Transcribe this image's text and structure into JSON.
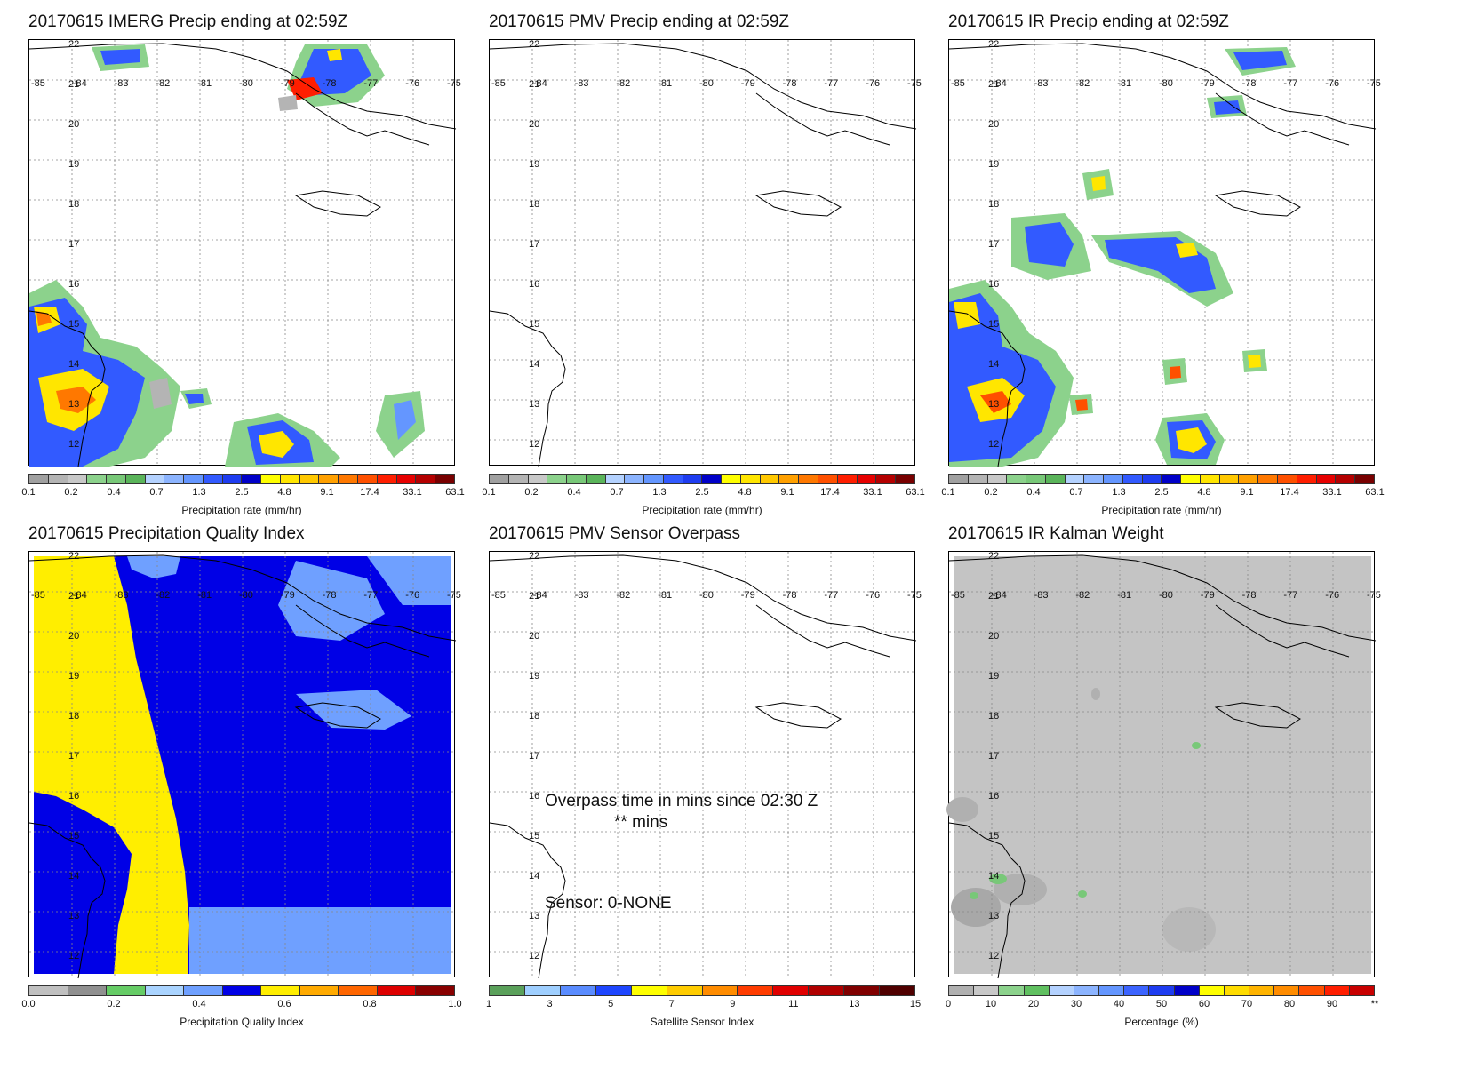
{
  "panels": [
    {
      "id": "imerg",
      "title": "20170615 IMERG Precip ending at 02:59Z",
      "colorbar_label": "Precipitation rate (mm/hr)",
      "ticks": [
        "0.1",
        "0.2",
        "0.4",
        "0.7",
        "1.3",
        "2.5",
        "4.8",
        "9.1",
        "17.4",
        "33.1",
        "63.1"
      ],
      "palette": "precip"
    },
    {
      "id": "pmv",
      "title": "20170615 PMV Precip ending at 02:59Z",
      "colorbar_label": "Precipitation rate (mm/hr)",
      "ticks": [
        "0.1",
        "0.2",
        "0.4",
        "0.7",
        "1.3",
        "2.5",
        "4.8",
        "9.1",
        "17.4",
        "33.1",
        "63.1"
      ],
      "palette": "precip"
    },
    {
      "id": "ir",
      "title": "20170615 IR Precip ending at 02:59Z",
      "colorbar_label": "Precipitation rate (mm/hr)",
      "ticks": [
        "0.1",
        "0.2",
        "0.4",
        "0.7",
        "1.3",
        "2.5",
        "4.8",
        "9.1",
        "17.4",
        "33.1",
        "63.1"
      ],
      "palette": "precip"
    },
    {
      "id": "pqi",
      "title": "20170615 Precipitation Quality Index",
      "colorbar_label": "Precipitation Quality Index",
      "ticks": [
        "0.0",
        "0.2",
        "0.4",
        "0.6",
        "0.8",
        "1.0"
      ],
      "palette": "quality"
    },
    {
      "id": "overpass",
      "title": "20170615 PMV Sensor Overpass",
      "colorbar_label": "Satellite Sensor Index",
      "ticks": [
        "1",
        "3",
        "5",
        "7",
        "9",
        "11",
        "13",
        "15"
      ],
      "palette": "sensor",
      "overpass_text": "Overpass time in mins since 02:30 Z",
      "overpass_value": "** mins",
      "sensor_text": "Sensor:   0-NONE"
    },
    {
      "id": "kalman",
      "title": "20170615 IR Kalman Weight",
      "colorbar_label": "Percentage (%)",
      "ticks": [
        "0",
        "10",
        "20",
        "30",
        "40",
        "50",
        "60",
        "70",
        "80",
        "90",
        "**"
      ],
      "palette": "percent"
    }
  ],
  "map": {
    "lon_labels": [
      "-85",
      "-84",
      "-83",
      "-82",
      "-81",
      "-80",
      "-79",
      "-78",
      "-77",
      "-76",
      "-75"
    ],
    "lat_labels": [
      "22",
      "21",
      "20",
      "19",
      "18",
      "17",
      "16",
      "15",
      "14",
      "13",
      "12"
    ]
  },
  "colors": {
    "precip": [
      "#a0a0a0",
      "#b4b4b4",
      "#c8c8c8",
      "#8cd28c",
      "#78c878",
      "#5ab45a",
      "#b4d2ff",
      "#8cb4ff",
      "#6496ff",
      "#325aff",
      "#1e3cf0",
      "#0000c8",
      "#ffff00",
      "#ffe600",
      "#ffc800",
      "#ffa000",
      "#ff7800",
      "#ff5000",
      "#ff1e00",
      "#e60000",
      "#b40000",
      "#780000"
    ],
    "quality": [
      "#c0c0c0",
      "#909090",
      "#66cc66",
      "#aad4ff",
      "#6fa0ff",
      "#0000e6",
      "#ffee00",
      "#ffaa00",
      "#ff6600",
      "#dd0000",
      "#880000"
    ],
    "sensor": [
      "#5aa05a",
      "#9fcfff",
      "#5a8cff",
      "#1e46ff",
      "#ffff00",
      "#ffcc00",
      "#ff8c00",
      "#ff3c00",
      "#e00000",
      "#b00000",
      "#800000",
      "#500000"
    ],
    "percent": [
      "#b0b0b0",
      "#c8c8c8",
      "#8cd28c",
      "#60c060",
      "#b4d2ff",
      "#8cb4ff",
      "#6496ff",
      "#3c64ff",
      "#1e3cf0",
      "#0000c8",
      "#ffff00",
      "#ffdc00",
      "#ffb400",
      "#ff8c00",
      "#ff5000",
      "#ff1e00",
      "#c80000"
    ]
  }
}
